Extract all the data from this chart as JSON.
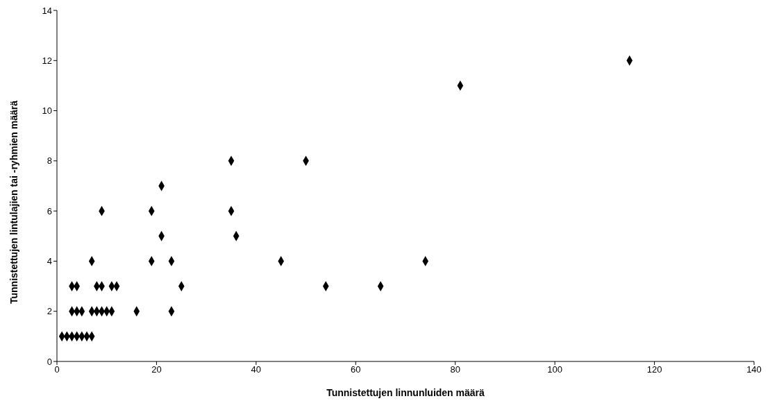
{
  "chart_data": {
    "type": "scatter",
    "xlabel": "Tunnistettujen linnunluiden määrä",
    "ylabel": "Tunnistettujen lintulajien tai -ryhmien määrä",
    "x": [
      1,
      2,
      3,
      4,
      5,
      6,
      7,
      3,
      4,
      5,
      7,
      8,
      9,
      10,
      11,
      16,
      23,
      3,
      4,
      8,
      9,
      11,
      12,
      25,
      7,
      19,
      23,
      21,
      9,
      19,
      35,
      21,
      35,
      36,
      45,
      50,
      54,
      65,
      74,
      81,
      115
    ],
    "values": [
      1,
      1,
      1,
      1,
      1,
      1,
      1,
      2,
      2,
      2,
      2,
      2,
      2,
      2,
      2,
      2,
      2,
      3,
      3,
      3,
      3,
      3,
      3,
      3,
      4,
      4,
      4,
      5,
      6,
      6,
      6,
      7,
      8,
      5,
      4,
      8,
      3,
      3,
      4,
      11,
      12
    ],
    "color": "#000000",
    "marker": "diamond",
    "xlim": [
      0,
      140
    ],
    "xticks": [
      0,
      20,
      40,
      60,
      80,
      100,
      120,
      140
    ],
    "ylim": [
      0,
      14
    ],
    "yticks": [
      0,
      2,
      4,
      6,
      8,
      10,
      12,
      14
    ],
    "grid": false
  }
}
